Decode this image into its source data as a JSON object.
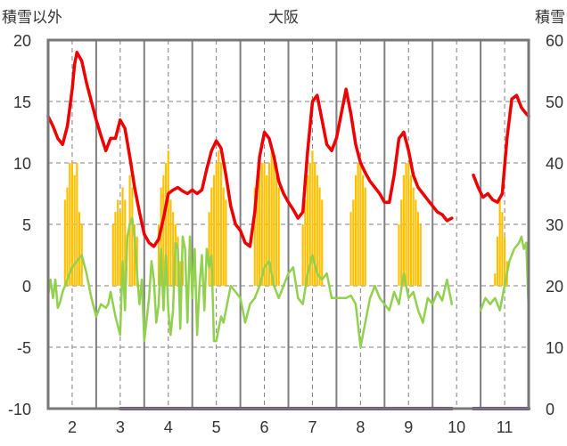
{
  "chart_data": {
    "type": "line",
    "title": "大阪",
    "ylabel_left": "積雪以外",
    "ylabel_right": "積雪",
    "x_ticks": [
      "2",
      "3",
      "4",
      "5",
      "6",
      "7",
      "8",
      "9",
      "10",
      "11"
    ],
    "x_range": [
      1.5,
      11.5
    ],
    "y_left_range": [
      -10,
      20
    ],
    "y_left_ticks": [
      "-10",
      "-5",
      "0",
      "5",
      "10",
      "15",
      "20"
    ],
    "y_right_range": [
      0,
      60
    ],
    "y_right_ticks": [
      "0",
      "10",
      "20",
      "30",
      "40",
      "50",
      "60"
    ],
    "colors": {
      "red": "#ee0000",
      "green": "#92d050",
      "orange": "#ffc000",
      "purple": "#7030a0",
      "frame": "#777777"
    },
    "series": [
      {
        "axis": "left",
        "color": "red",
        "style": "line",
        "x": [
          1.5,
          1.6,
          1.7,
          1.8,
          1.9,
          2.0,
          2.05,
          2.1,
          2.2,
          2.3,
          2.4,
          2.5,
          2.6,
          2.7,
          2.8,
          2.9,
          3.0,
          3.1,
          3.2,
          3.3,
          3.4,
          3.5,
          3.6,
          3.7,
          3.8,
          3.9,
          4.0,
          4.1,
          4.2,
          4.3,
          4.4,
          4.5,
          4.6,
          4.7,
          4.8,
          4.9,
          5.0,
          5.1,
          5.2,
          5.3,
          5.4,
          5.5,
          5.6,
          5.7,
          5.8,
          5.9,
          6.0,
          6.1,
          6.2,
          6.3,
          6.4,
          6.5,
          6.6,
          6.7,
          6.8,
          6.9,
          7.0,
          7.1,
          7.2,
          7.3,
          7.4,
          7.5,
          7.6,
          7.7,
          7.8,
          7.9,
          8.0,
          8.1,
          8.2,
          8.3,
          8.4,
          8.5,
          8.6,
          8.7,
          8.8,
          8.9,
          9.0,
          9.1,
          9.2,
          9.3,
          9.4,
          9.5,
          9.6,
          9.7,
          9.8,
          9.9
        ],
        "y": [
          13.8,
          13,
          12,
          11.5,
          13,
          16,
          18,
          19,
          18.3,
          16.5,
          15,
          13.5,
          12.2,
          11,
          12,
          12,
          13.5,
          12.8,
          10.5,
          8,
          6,
          4.2,
          3.5,
          3.2,
          3.8,
          5.5,
          7.5,
          7.8,
          8,
          7.7,
          7.5,
          7.8,
          7.5,
          7.8,
          9.5,
          11,
          11.8,
          11.2,
          9,
          6.5,
          5,
          4.5,
          3.5,
          3.2,
          6,
          10.5,
          12.5,
          12,
          10.5,
          8.5,
          7.5,
          6.8,
          6.2,
          5.5,
          6,
          11,
          15,
          15.5,
          13.5,
          11.5,
          11,
          12,
          14,
          16,
          14,
          11.5,
          10,
          9.2,
          8.5,
          8,
          7.5,
          6.8,
          6.8,
          9,
          12,
          12.5,
          11,
          9,
          8,
          7.5,
          7,
          6.5,
          6,
          5.8,
          5.3,
          5.5
        ]
      },
      {
        "axis": "left",
        "color": "red",
        "style": "line",
        "x": [
          10.35,
          10.45,
          10.55,
          10.65,
          10.75,
          10.85,
          10.95,
          11.05,
          11.15,
          11.25,
          11.35,
          11.45,
          11.5
        ],
        "y": [
          9,
          8,
          7.2,
          7.5,
          7,
          6.8,
          7.5,
          12,
          15.2,
          15.5,
          14.5,
          14,
          13.8
        ]
      },
      {
        "axis": "left",
        "color": "green",
        "style": "line",
        "x": [
          1.5,
          1.55,
          1.6,
          1.65,
          1.7,
          1.75,
          1.8,
          1.9,
          2.0,
          2.1,
          2.2,
          2.3,
          2.4,
          2.5,
          2.6,
          2.7,
          2.75,
          2.8,
          2.9,
          3.0,
          3.05,
          3.1,
          3.15,
          3.2,
          3.25,
          3.3,
          3.35,
          3.4,
          3.45,
          3.5,
          3.6,
          3.65,
          3.7,
          3.75,
          3.8,
          3.85,
          3.9,
          3.95,
          4.0,
          4.05,
          4.1,
          4.15,
          4.2,
          4.25,
          4.3,
          4.35,
          4.4,
          4.45,
          4.5,
          4.55,
          4.6,
          4.65,
          4.7,
          4.75,
          4.8,
          4.85,
          4.9,
          4.95,
          5.0,
          5.05,
          5.1,
          5.15,
          5.2,
          5.3,
          5.4,
          5.5,
          5.6,
          5.7,
          5.8,
          5.9,
          6.0,
          6.1,
          6.2,
          6.3,
          6.4,
          6.5,
          6.6,
          6.7,
          6.8,
          6.9,
          7.0,
          7.1,
          7.2,
          7.3,
          7.4,
          7.5,
          7.6,
          7.7,
          7.8,
          7.9,
          8.0,
          8.1,
          8.2,
          8.3,
          8.4,
          8.5,
          8.6,
          8.7,
          8.8,
          8.9,
          9.0,
          9.1,
          9.2,
          9.3,
          9.4,
          9.5,
          9.6,
          9.7,
          9.8,
          9.9
        ],
        "y": [
          -0.8,
          0.5,
          -1,
          0.5,
          -1.8,
          -1.3,
          -0.5,
          0.5,
          1.5,
          2,
          2.5,
          1,
          -1,
          -2.5,
          -1.5,
          -1.8,
          -1.5,
          -0.5,
          -2.5,
          -4,
          2,
          -2,
          4,
          5,
          5.5,
          4,
          1,
          -1.5,
          0.5,
          -4.5,
          -1,
          2,
          0.5,
          -3,
          -1.5,
          3,
          -2,
          2.5,
          -2,
          -4,
          -2,
          3.5,
          3,
          -3.5,
          4,
          3,
          -3,
          4,
          -1,
          3,
          -4,
          0,
          2.5,
          -2,
          3,
          1.5,
          2.5,
          -4.5,
          -4.5,
          -3.5,
          -2.5,
          -3,
          -2,
          0,
          -0.5,
          -1,
          -3,
          -1.5,
          -1,
          0,
          1.5,
          2,
          0,
          -1,
          0,
          1,
          1.5,
          -1,
          -1.5,
          1,
          2.5,
          1,
          0.5,
          1,
          -1,
          -1,
          -1,
          -1,
          -0.8,
          -1.5,
          -5,
          -3,
          -1,
          0,
          -1,
          -1.5,
          -2,
          -0.5,
          -1.5,
          1,
          -1,
          -0.5,
          -2,
          -3,
          -1,
          -1.5,
          -0.5,
          -1.2,
          0.5,
          -1.5
        ]
      },
      {
        "axis": "left",
        "color": "green",
        "style": "line",
        "x": [
          10.5,
          10.6,
          10.7,
          10.8,
          10.9,
          11.0,
          11.1,
          11.2,
          11.3,
          11.35,
          11.4,
          11.45,
          11.5
        ],
        "y": [
          -2,
          -1,
          -1.5,
          -1,
          -2,
          0,
          2,
          3,
          3.5,
          4,
          3,
          3.5,
          -2
        ]
      },
      {
        "axis": "right",
        "color": "orange",
        "style": "bar",
        "x": [
          1.85,
          1.9,
          1.95,
          2.0,
          2.05,
          2.1,
          2.15,
          2.2,
          2.85,
          2.9,
          2.95,
          3.0,
          3.05,
          3.1,
          3.2,
          3.25,
          3.3,
          3.35,
          3.8,
          3.85,
          3.9,
          3.95,
          4.0,
          4.05,
          4.1,
          4.15,
          4.2,
          4.25,
          4.3,
          4.85,
          4.9,
          4.95,
          5.0,
          5.05,
          5.1,
          5.15,
          5.2,
          5.8,
          5.85,
          5.9,
          5.95,
          6.0,
          6.05,
          6.1,
          6.15,
          6.2,
          6.25,
          6.3,
          6.8,
          6.85,
          6.9,
          6.95,
          7.0,
          7.05,
          7.1,
          7.15,
          7.2,
          7.8,
          7.85,
          7.9,
          7.95,
          8.0,
          8.05,
          8.1,
          8.8,
          8.85,
          8.9,
          8.95,
          9.0,
          9.05,
          9.1,
          9.15,
          9.2,
          9.25,
          10.8,
          10.85,
          10.9,
          10.95,
          11.0,
          11.05
        ],
        "y": [
          34,
          36,
          40,
          40,
          38,
          40,
          32,
          30,
          30,
          32,
          34,
          32,
          36,
          34,
          38,
          36,
          30,
          28,
          30,
          36,
          38,
          40,
          42,
          34,
          32,
          30,
          28,
          24,
          24,
          32,
          36,
          38,
          40,
          42,
          40,
          36,
          34,
          36,
          38,
          40,
          40,
          40,
          38,
          40,
          42,
          40,
          38,
          36,
          30,
          34,
          38,
          40,
          42,
          40,
          38,
          36,
          34,
          32,
          34,
          38,
          40,
          40,
          38,
          36,
          30,
          34,
          38,
          40,
          40,
          38,
          36,
          34,
          32,
          30,
          22,
          28,
          34,
          32,
          28,
          24
        ]
      },
      {
        "axis": "right",
        "color": "purple",
        "style": "line",
        "x": [
          3.0,
          9.9
        ],
        "y": [
          0,
          0
        ]
      },
      {
        "axis": "right",
        "color": "purple",
        "style": "line",
        "x": [
          10.35,
          11.5
        ],
        "y": [
          0,
          0
        ]
      }
    ]
  }
}
